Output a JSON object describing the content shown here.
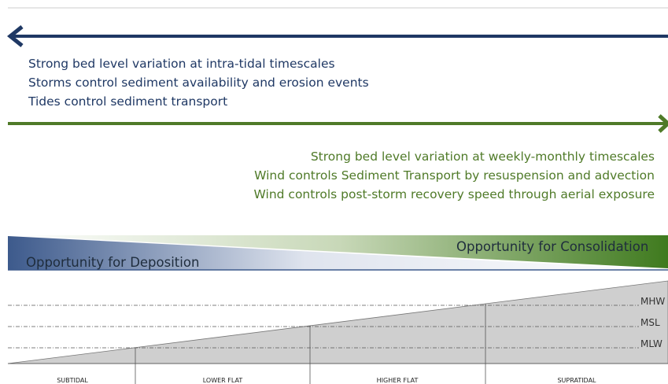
{
  "process_arrows": [
    {
      "direction": "left",
      "lines": [
        "Strong bed level variation at intra-tidal timescales",
        "Storms control sediment availability and erosion events",
        "Tides control sediment transport"
      ]
    },
    {
      "direction": "right",
      "lines": [
        "Strong bed level variation at weekly-monthly timescales",
        "Wind controls Sediment Transport by resuspension and advection",
        "Wind controls post-storm recovery speed through aerial exposure"
      ]
    }
  ],
  "bands": {
    "left": "Opportunity for  Deposition",
    "right": "Opportunity for Consolidation"
  },
  "levels": [
    "MHW",
    "MSL",
    "MLW"
  ],
  "zones": [
    "SUBTIDAL",
    "LOWER FLAT",
    "HIGHER FLAT",
    "SUPRATIDAL"
  ]
}
